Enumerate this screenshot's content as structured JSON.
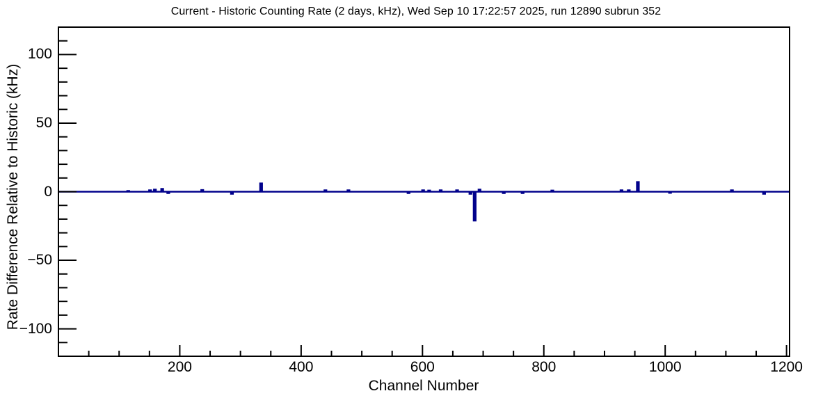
{
  "chart_data": {
    "type": "line",
    "title": "Current - Historic Counting Rate (2 days, kHz), Wed Sep 10 17:22:57 2025, run 12890 subrun 352",
    "xlabel": "Channel Number",
    "ylabel": "Rate Difference Relative to Historic (kHz)",
    "xlim": [
      0,
      1205
    ],
    "ylim": [
      -120,
      120
    ],
    "x_major_ticks": [
      200,
      400,
      600,
      800,
      1000,
      1200
    ],
    "x_minor_step": 50,
    "y_major_ticks": [
      100,
      50,
      0,
      -50,
      -100
    ],
    "y_minor_step": 10,
    "grid": false,
    "legend": "none",
    "line_color": "#00008B",
    "frame_color": "#000000",
    "background_color": "#ffffff",
    "baseline_value": 0,
    "series": [
      {
        "name": "rate-difference",
        "note": "flat at 0 kHz except these spike deviations [channel, kHz]",
        "deviations": [
          [
            115,
            0.5
          ],
          [
            151,
            1.0
          ],
          [
            159,
            1.5
          ],
          [
            171,
            2.0
          ],
          [
            181,
            -1.0
          ],
          [
            237,
            1.2
          ],
          [
            286,
            -1.5
          ],
          [
            334,
            6.0
          ],
          [
            440,
            1.0
          ],
          [
            478,
            1.0
          ],
          [
            577,
            -1.0
          ],
          [
            601,
            1.0
          ],
          [
            611,
            0.8
          ],
          [
            630,
            1.0
          ],
          [
            657,
            1.0
          ],
          [
            679,
            -1.5
          ],
          [
            686,
            -21.0
          ],
          [
            694,
            1.5
          ],
          [
            734,
            -1.0
          ],
          [
            765,
            -1.0
          ],
          [
            814,
            0.8
          ],
          [
            928,
            1.0
          ],
          [
            940,
            1.0
          ],
          [
            955,
            7.0
          ],
          [
            1008,
            -0.8
          ],
          [
            1110,
            1.0
          ],
          [
            1163,
            -1.5
          ]
        ]
      }
    ]
  }
}
